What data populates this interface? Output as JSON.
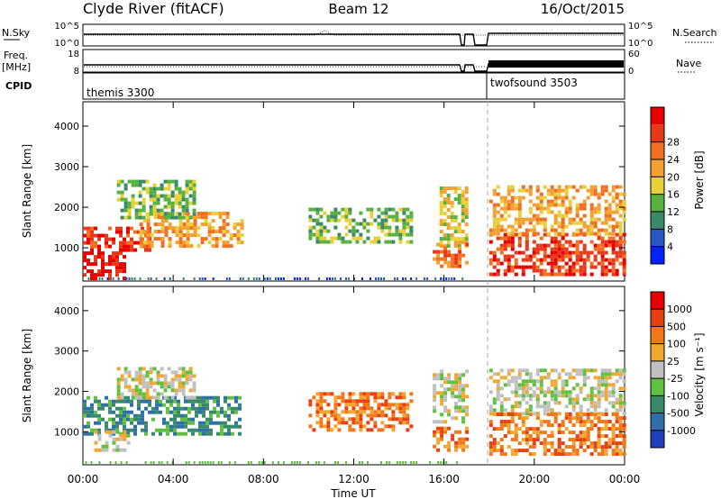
{
  "header": {
    "station": "Clyde River (fitACF)",
    "beam": "Beam 12",
    "date": "16/Oct/2015"
  },
  "panels": {
    "nsky": {
      "label": "N.Sky",
      "ticks": [
        "10^5",
        "10^0"
      ],
      "right_label": "N.Search",
      "right_ticks": [
        "10^5",
        "10^0"
      ]
    },
    "freq": {
      "label": "Freq.",
      "unit": "[MHz]",
      "ticks": [
        "18",
        "8"
      ],
      "right_label": "Nave",
      "right_ticks": [
        "60",
        "0"
      ]
    },
    "cpid": {
      "label": "CPID",
      "programs": [
        "themis 3300",
        "twofsound 3503"
      ]
    }
  },
  "chart_data": [
    {
      "type": "heatmap",
      "name": "power",
      "ylabel": "Slant Range [km]",
      "xlabel": "",
      "xlim": [
        "00:00",
        "24:00"
      ],
      "ylim": [
        180,
        4600
      ],
      "y_ticks": [
        1000,
        2000,
        3000,
        4000
      ],
      "x_tick_labels": [
        "00:00",
        "04:00",
        "08:00",
        "12:00",
        "16:00",
        "20:00",
        "00:00"
      ],
      "colorbar": {
        "label": "Power [dB]",
        "tick_labels": [
          "4",
          "8",
          "12",
          "16",
          "20",
          "24",
          "28"
        ],
        "colors": [
          "#0022ff",
          "#2858c4",
          "#3a8a6a",
          "#58b040",
          "#e8d038",
          "#f4a030",
          "#f07020",
          "#e83818",
          "#e80000"
        ]
      },
      "scatter_blocks": [
        {
          "t0": 0.0,
          "t1": 1.9,
          "r0": 200,
          "r1": 900,
          "level": 8
        },
        {
          "t0": 0.0,
          "t1": 3.0,
          "r0": 900,
          "r1": 1500,
          "level": 7
        },
        {
          "t0": 2.5,
          "t1": 7.0,
          "r0": 1000,
          "r1": 1800,
          "level": 5
        },
        {
          "t0": 1.5,
          "t1": 5.0,
          "r0": 1700,
          "r1": 2600,
          "level": 3
        },
        {
          "t0": 10.0,
          "t1": 14.5,
          "r0": 1100,
          "r1": 1900,
          "level": 3
        },
        {
          "t0": 15.8,
          "t1": 17.0,
          "r0": 1000,
          "r1": 2500,
          "level": 4
        },
        {
          "t0": 15.5,
          "t1": 17.0,
          "r0": 500,
          "r1": 1100,
          "level": 6
        },
        {
          "t0": 18.0,
          "t1": 24.0,
          "r0": 300,
          "r1": 1300,
          "level": 7
        },
        {
          "t0": 18.0,
          "t1": 24.0,
          "r0": 1300,
          "r1": 2500,
          "level": 5
        }
      ]
    },
    {
      "type": "heatmap",
      "name": "velocity",
      "ylabel": "Slant Range [km]",
      "xlabel": "Time UT",
      "xlim": [
        "00:00",
        "24:00"
      ],
      "ylim": [
        180,
        4600
      ],
      "y_ticks": [
        1000,
        2000,
        3000,
        4000
      ],
      "x_tick_labels": [
        "00:00",
        "04:00",
        "08:00",
        "12:00",
        "16:00",
        "20:00",
        "00:00"
      ],
      "colorbar": {
        "label": "Velocity [m s⁻¹]",
        "tick_labels": [
          "1000",
          "500",
          "100",
          "25",
          "-25",
          "-100",
          "-500",
          "-1000"
        ],
        "colors": [
          "#2040c0",
          "#3070a8",
          "#3a8a6a",
          "#60c040",
          "#c0c0c0",
          "#f0a830",
          "#f07818",
          "#e84010",
          "#e80000"
        ]
      },
      "scatter_blocks": [
        {
          "t0": 0.0,
          "t1": 7.0,
          "r0": 900,
          "r1": 1800,
          "level": 2
        },
        {
          "t0": 0.5,
          "t1": 2.0,
          "r0": 500,
          "r1": 1000,
          "level": 4
        },
        {
          "t0": 1.5,
          "t1": 5.0,
          "r0": 1800,
          "r1": 2600,
          "level": 4
        },
        {
          "t0": 10.0,
          "t1": 14.5,
          "r0": 1000,
          "r1": 1900,
          "level": 6
        },
        {
          "t0": 15.5,
          "t1": 17.0,
          "r0": 500,
          "r1": 1100,
          "level": 6
        },
        {
          "t0": 15.5,
          "t1": 17.0,
          "r0": 1200,
          "r1": 2500,
          "level": 4
        },
        {
          "t0": 18.0,
          "t1": 24.0,
          "r0": 1400,
          "r1": 2500,
          "level": 4
        },
        {
          "t0": 18.0,
          "t1": 24.0,
          "r0": 400,
          "r1": 1400,
          "level": 6
        }
      ]
    }
  ]
}
